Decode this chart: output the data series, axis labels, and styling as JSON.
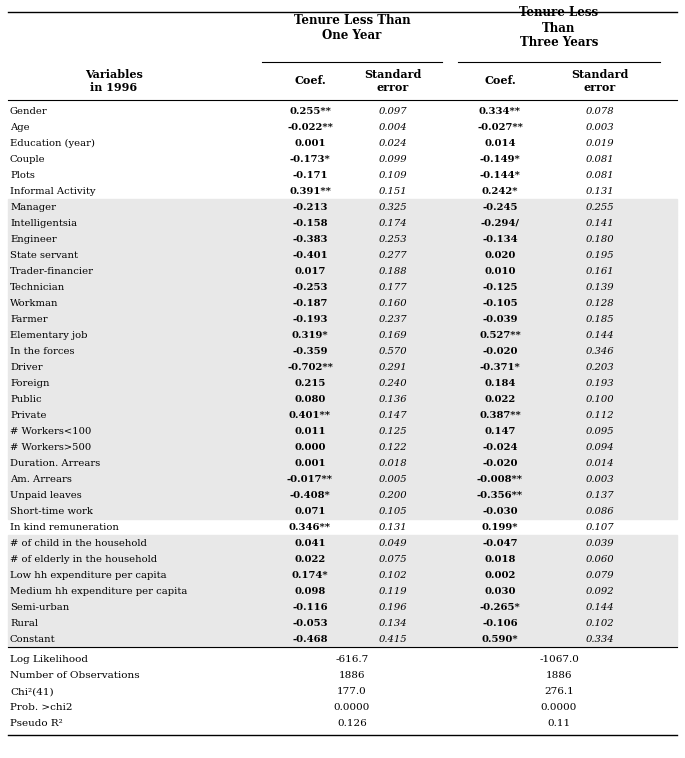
{
  "rows": [
    [
      "Gender",
      "0.255**",
      "0.097",
      "0.334**",
      "0.078"
    ],
    [
      "Age",
      "-0.022**",
      "0.004",
      "-0.027**",
      "0.003"
    ],
    [
      "Education (year)",
      "0.001",
      "0.024",
      "0.014",
      "0.019"
    ],
    [
      "Couple",
      "-0.173*",
      "0.099",
      "-0.149*",
      "0.081"
    ],
    [
      "Plots",
      "-0.171",
      "0.109",
      "-0.144*",
      "0.081"
    ],
    [
      "Informal Activity",
      "0.391**",
      "0.151",
      "0.242*",
      "0.131"
    ],
    [
      "Manager",
      "-0.213",
      "0.325",
      "-0.245",
      "0.255"
    ],
    [
      "Intelligentsia",
      "-0.158",
      "0.174",
      "-0.294/",
      "0.141"
    ],
    [
      "Engineer",
      "-0.383",
      "0.253",
      "-0.134",
      "0.180"
    ],
    [
      "State servant",
      "-0.401",
      "0.277",
      "0.020",
      "0.195"
    ],
    [
      "Trader-financier",
      "0.017",
      "0.188",
      "0.010",
      "0.161"
    ],
    [
      "Technician",
      "-0.253",
      "0.177",
      "-0.125",
      "0.139"
    ],
    [
      "Workman",
      "-0.187",
      "0.160",
      "-0.105",
      "0.128"
    ],
    [
      "Farmer",
      "-0.193",
      "0.237",
      "-0.039",
      "0.185"
    ],
    [
      "Elementary job",
      "0.319*",
      "0.169",
      "0.527**",
      "0.144"
    ],
    [
      "In the forces",
      "-0.359",
      "0.570",
      "-0.020",
      "0.346"
    ],
    [
      "Driver",
      "-0.702**",
      "0.291",
      "-0.371*",
      "0.203"
    ],
    [
      "Foreign",
      "0.215",
      "0.240",
      "0.184",
      "0.193"
    ],
    [
      "Public",
      "0.080",
      "0.136",
      "0.022",
      "0.100"
    ],
    [
      "Private",
      "0.401**",
      "0.147",
      "0.387**",
      "0.112"
    ],
    [
      "# Workers<100",
      "0.011",
      "0.125",
      "0.147",
      "0.095"
    ],
    [
      "# Workers>500",
      "0.000",
      "0.122",
      "-0.024",
      "0.094"
    ],
    [
      "Duration. Arrears",
      "0.001",
      "0.018",
      "-0.020",
      "0.014"
    ],
    [
      "Am. Arrears",
      "-0.017**",
      "0.005",
      "-0.008**",
      "0.003"
    ],
    [
      "Unpaid leaves",
      "-0.408*",
      "0.200",
      "-0.356**",
      "0.137"
    ],
    [
      "Short-time work",
      "0.071",
      "0.105",
      "-0.030",
      "0.086"
    ],
    [
      "In kind remuneration",
      "0.346**",
      "0.131",
      "0.199*",
      "0.107"
    ],
    [
      "# of child in the household",
      "0.041",
      "0.049",
      "-0.047",
      "0.039"
    ],
    [
      "# of elderly in the household",
      "0.022",
      "0.075",
      "0.018",
      "0.060"
    ],
    [
      "Low hh expenditure per capita",
      "0.174*",
      "0.102",
      "0.002",
      "0.079"
    ],
    [
      "Medium hh expenditure per capita",
      "0.098",
      "0.119",
      "0.030",
      "0.092"
    ],
    [
      "Semi-urban",
      "-0.116",
      "0.196",
      "-0.265*",
      "0.144"
    ],
    [
      "Rural",
      "-0.053",
      "0.134",
      "-0.106",
      "0.102"
    ],
    [
      "Constant",
      "-0.468",
      "0.415",
      "0.590*",
      "0.334"
    ]
  ],
  "shaded_rows": [
    6,
    7,
    8,
    9,
    10,
    11,
    12,
    13,
    14,
    15,
    16,
    17,
    18,
    19,
    20,
    21,
    22,
    23,
    24,
    25,
    27,
    28,
    29,
    30,
    31,
    32,
    33
  ],
  "footer_rows": [
    [
      "Log Likelihood",
      "-616.7",
      "-1067.0"
    ],
    [
      "Number of Observations",
      "1886",
      "1886"
    ],
    [
      "Chi²(41)",
      "177.0",
      "276.1"
    ],
    [
      "Prob. >chi2",
      "0.0000",
      "0.0000"
    ],
    [
      "Pseudo R²",
      "0.126",
      "0.11"
    ]
  ],
  "shade_color": "#e8e8e8"
}
